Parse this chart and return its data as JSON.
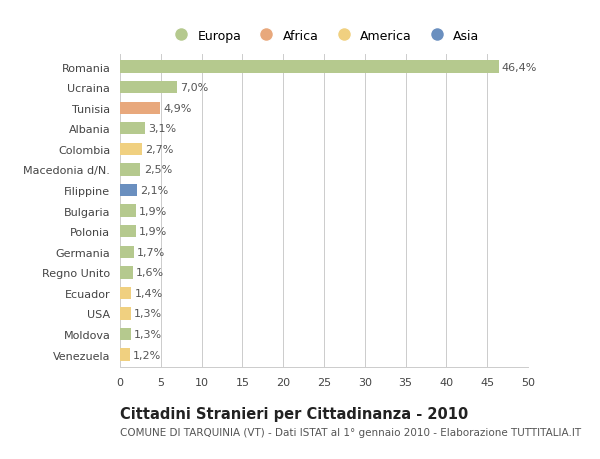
{
  "categories": [
    "Romania",
    "Ucraina",
    "Tunisia",
    "Albania",
    "Colombia",
    "Macedonia d/N.",
    "Filippine",
    "Bulgaria",
    "Polonia",
    "Germania",
    "Regno Unito",
    "Ecuador",
    "USA",
    "Moldova",
    "Venezuela"
  ],
  "values": [
    46.4,
    7.0,
    4.9,
    3.1,
    2.7,
    2.5,
    2.1,
    1.9,
    1.9,
    1.7,
    1.6,
    1.4,
    1.3,
    1.3,
    1.2
  ],
  "labels": [
    "46,4%",
    "7,0%",
    "4,9%",
    "3,1%",
    "2,7%",
    "2,5%",
    "2,1%",
    "1,9%",
    "1,9%",
    "1,7%",
    "1,6%",
    "1,4%",
    "1,3%",
    "1,3%",
    "1,2%"
  ],
  "colors": [
    "#b5c98e",
    "#b5c98e",
    "#e8a87c",
    "#b5c98e",
    "#f0d080",
    "#b5c98e",
    "#6a8fbf",
    "#b5c98e",
    "#b5c98e",
    "#b5c98e",
    "#b5c98e",
    "#f0d080",
    "#f0d080",
    "#b5c98e",
    "#f0d080"
  ],
  "legend_labels": [
    "Europa",
    "Africa",
    "America",
    "Asia"
  ],
  "legend_colors": [
    "#b5c98e",
    "#e8a87c",
    "#f0d080",
    "#6a8fbf"
  ],
  "title": "Cittadini Stranieri per Cittadinanza - 2010",
  "subtitle": "COMUNE DI TARQUINIA (VT) - Dati ISTAT al 1° gennaio 2010 - Elaborazione TUTTITALIA.IT",
  "xlim": [
    0,
    50
  ],
  "xticks": [
    0,
    5,
    10,
    15,
    20,
    25,
    30,
    35,
    40,
    45,
    50
  ],
  "background_color": "#ffffff",
  "grid_color": "#cccccc",
  "bar_height": 0.6,
  "title_fontsize": 10.5,
  "subtitle_fontsize": 7.5,
  "tick_fontsize": 8,
  "label_fontsize": 8
}
